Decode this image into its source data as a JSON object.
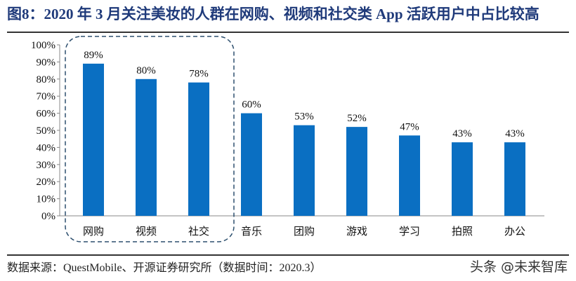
{
  "title": "图8：2020 年 3 月关注美妆的人群在网购、视频和社交类 App 活跃用户中占比较高",
  "source": "数据来源：QuestMobile、开源证券研究所（数据时间：2020.3）",
  "watermark": "头条 @未来智库",
  "chart_data": {
    "type": "bar",
    "categories": [
      "网购",
      "视频",
      "社交",
      "音乐",
      "团购",
      "游戏",
      "学习",
      "拍照",
      "办公"
    ],
    "values": [
      89,
      80,
      78,
      60,
      53,
      52,
      47,
      43,
      43
    ],
    "data_labels": [
      "89%",
      "80%",
      "78%",
      "60%",
      "53%",
      "52%",
      "47%",
      "43%",
      "43%"
    ],
    "ylim": [
      0,
      100
    ],
    "yticks": [
      "0%",
      "10%",
      "20%",
      "30%",
      "40%",
      "50%",
      "60%",
      "70%",
      "80%",
      "90%",
      "100%"
    ],
    "bar_color": "#0a6fc2",
    "highlight": {
      "categories": [
        "网购",
        "视频",
        "社交"
      ],
      "style": "dashed rounded box",
      "color": "#2d4f6e"
    },
    "grid": false,
    "legend": "none"
  }
}
